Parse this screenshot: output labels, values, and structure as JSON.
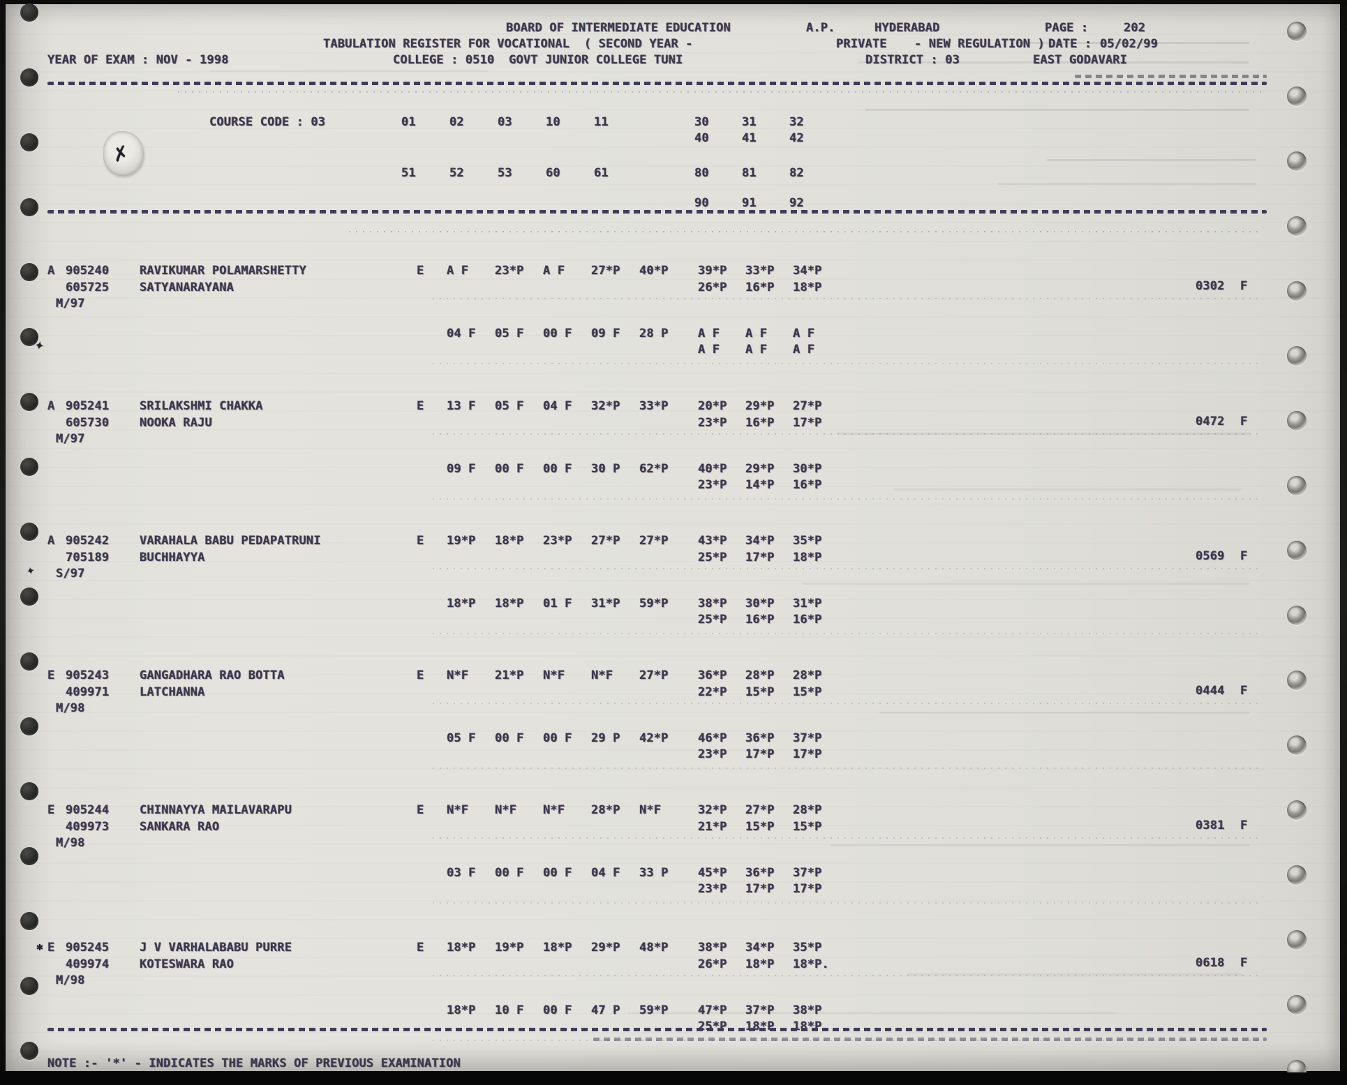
{
  "document": {
    "board": "BOARD OF INTERMEDIATE EDUCATION",
    "state": "A.P.",
    "city": "HYDERABAD",
    "page_label": "PAGE :",
    "page_number": "202",
    "register_line": "TABULATION REGISTER FOR VOCATIONAL  ( SECOND YEAR -",
    "exam_type": "PRIVATE",
    "regulation": "- NEW REGULATION )",
    "date_label": "DATE :",
    "date_value": "05/02/99",
    "year_of_exam": "YEAR OF EXAM : NOV - 1998",
    "college": "COLLEGE : 0510  GOVT JUNIOR COLLEGE TUNI",
    "district": "DISTRICT : 03",
    "district_name": "EAST GODAVARI",
    "course_code_label": "COURSE CODE : 03",
    "note": "NOTE :- '*' - INDICATES THE MARKS OF PREVIOUS EXAMINATION"
  },
  "course_columns": {
    "row1": [
      "01",
      "02",
      "03",
      "10",
      "11",
      "30",
      "31",
      "32"
    ],
    "row1_cont": [
      "40",
      "41",
      "42"
    ],
    "row2": [
      "51",
      "52",
      "53",
      "60",
      "61",
      "80",
      "81",
      "82"
    ],
    "row2_cont": [
      "90",
      "91",
      "92"
    ]
  },
  "records": [
    {
      "status": "A",
      "reg_no": "905240",
      "name": "RAVIKUMAR POLAMARSHETTY",
      "prev_no": "605725",
      "father_name": "SATYANARAYANA",
      "session": "M/97",
      "medium": "E",
      "marks_row1": [
        "A F",
        "23*P",
        "A F",
        "27*P",
        "40*P",
        "39*P",
        "33*P",
        "34*P"
      ],
      "marks_row1_cont": [
        "26*P",
        "16*P",
        "18*P"
      ],
      "marks_row2": [
        "04 F",
        "05 F",
        "00 F",
        "09 F",
        "28 P",
        "A F",
        "A F",
        "A F"
      ],
      "marks_row2_cont": [
        "A F",
        "A F",
        "A F"
      ],
      "total": "0302",
      "result": "F"
    },
    {
      "status": "A",
      "reg_no": "905241",
      "name": "SRILAKSHMI CHAKKA",
      "prev_no": "605730",
      "father_name": "NOOKA RAJU",
      "session": "M/97",
      "medium": "E",
      "marks_row1": [
        "13 F",
        "05 F",
        "04 F",
        "32*P",
        "33*P",
        "20*P",
        "29*P",
        "27*P"
      ],
      "marks_row1_cont": [
        "23*P",
        "16*P",
        "17*P"
      ],
      "marks_row2": [
        "09 F",
        "00 F",
        "00 F",
        "30 P",
        "62*P",
        "40*P",
        "29*P",
        "30*P"
      ],
      "marks_row2_cont": [
        "23*P",
        "14*P",
        "16*P"
      ],
      "total": "0472",
      "result": "F"
    },
    {
      "status": "A",
      "reg_no": "905242",
      "name": "VARAHALA BABU PEDAPATRUNI",
      "prev_no": "705189",
      "father_name": "BUCHHAYYA",
      "session": "S/97",
      "medium": "E",
      "marks_row1": [
        "19*P",
        "18*P",
        "23*P",
        "27*P",
        "27*P",
        "43*P",
        "34*P",
        "35*P"
      ],
      "marks_row1_cont": [
        "25*P",
        "17*P",
        "18*P"
      ],
      "marks_row2": [
        "18*P",
        "18*P",
        "01 F",
        "31*P",
        "59*P",
        "38*P",
        "30*P",
        "31*P"
      ],
      "marks_row2_cont": [
        "25*P",
        "16*P",
        "16*P"
      ],
      "total": "0569",
      "result": "F"
    },
    {
      "status": "E",
      "reg_no": "905243",
      "name": "GANGADHARA RAO BOTTA",
      "prev_no": "409971",
      "father_name": "LATCHANNA",
      "session": "M/98",
      "medium": "E",
      "marks_row1": [
        "N*F",
        "21*P",
        "N*F",
        "N*F",
        "27*P",
        "36*P",
        "28*P",
        "28*P"
      ],
      "marks_row1_cont": [
        "22*P",
        "15*P",
        "15*P"
      ],
      "marks_row2": [
        "05 F",
        "00 F",
        "00 F",
        "29 P",
        "42*P",
        "46*P",
        "36*P",
        "37*P"
      ],
      "marks_row2_cont": [
        "23*P",
        "17*P",
        "17*P"
      ],
      "total": "0444",
      "result": "F"
    },
    {
      "status": "E",
      "reg_no": "905244",
      "name": "CHINNAYYA MAILAVARAPU",
      "prev_no": "409973",
      "father_name": "SANKARA RAO",
      "session": "M/98",
      "medium": "E",
      "marks_row1": [
        "N*F",
        "N*F",
        "N*F",
        "28*P",
        "N*F",
        "32*P",
        "27*P",
        "28*P"
      ],
      "marks_row1_cont": [
        "21*P",
        "15*P",
        "15*P"
      ],
      "marks_row2": [
        "03 F",
        "00 F",
        "00 F",
        "04 F",
        "33 P",
        "45*P",
        "36*P",
        "37*P"
      ],
      "marks_row2_cont": [
        "23*P",
        "17*P",
        "17*P"
      ],
      "total": "0381",
      "result": "F"
    },
    {
      "status": "E",
      "reg_no": "905245",
      "name": "J V VARHALABABU PURRE",
      "prev_no": "409974",
      "father_name": "KOTESWARA RAO",
      "session": "M/98",
      "medium": "E",
      "marks_row1": [
        "18*P",
        "19*P",
        "18*P",
        "29*P",
        "48*P",
        "38*P",
        "34*P",
        "35*P"
      ],
      "marks_row1_cont": [
        "26*P",
        "18*P",
        "18*P."
      ],
      "marks_row2": [
        "18*P",
        "10 F",
        "00 F",
        "47 P",
        "59*P",
        "47*P",
        "37*P",
        "38*P"
      ],
      "marks_row2_cont": [
        "25*P",
        "18*P",
        "18*P"
      ],
      "total": "0618",
      "result": "F"
    }
  ]
}
